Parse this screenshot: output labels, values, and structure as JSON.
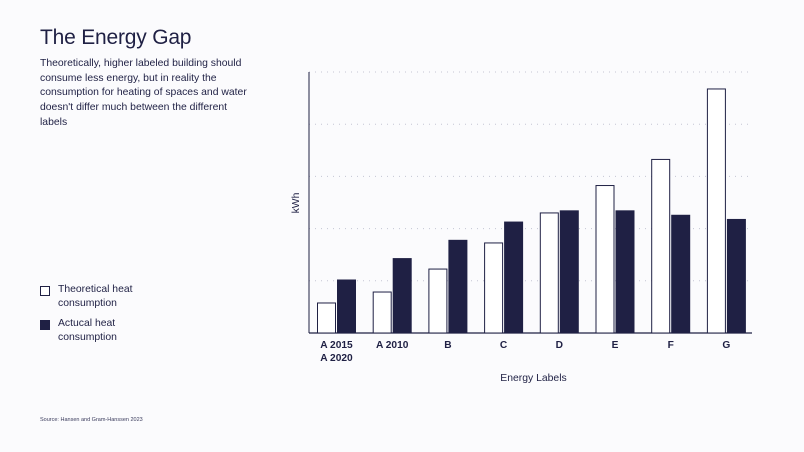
{
  "title": "The Energy Gap",
  "subtitle": "Theoretically, higher labeled building should consume less energy, but in reality the consumption for heating of spaces and water doesn't differ much between the different labels",
  "source": "Source: Hansen and Gram-Hanssen 2023",
  "colors": {
    "dark": "#1f2044",
    "light": "#ffffff",
    "grid": "#c4c5d3",
    "background": "#fbfbfd"
  },
  "chart_data": {
    "type": "bar",
    "xlabel": "Energy Labels",
    "ylabel": "kWh",
    "ylim": [
      0,
      100
    ],
    "grid": true,
    "legend_placement": "left",
    "categories": [
      [
        "A 2015",
        "A 2020"
      ],
      [
        "A 2010"
      ],
      [
        "B"
      ],
      [
        "C"
      ],
      [
        "D"
      ],
      [
        "E"
      ],
      [
        "F"
      ],
      [
        "G"
      ]
    ],
    "series": [
      {
        "name": "Theoretical heat consumption",
        "style": "outline",
        "values": [
          11.5,
          15.7,
          24.5,
          34.5,
          46,
          56.5,
          66.5,
          93.5
        ]
      },
      {
        "name": "Actucal heat consumption",
        "style": "filled",
        "values": [
          20.5,
          28.7,
          35.7,
          42.7,
          47,
          47,
          45.3,
          43.7
        ]
      }
    ]
  }
}
